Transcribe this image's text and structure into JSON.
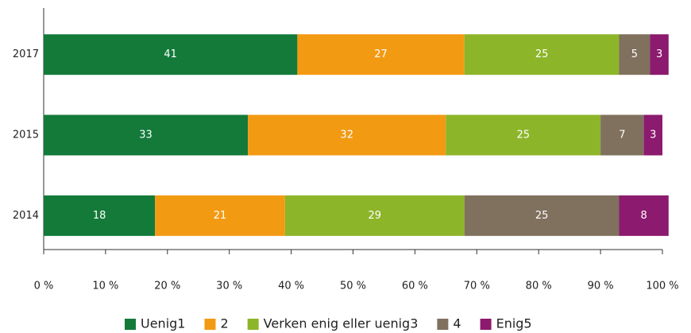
{
  "chart_data": {
    "type": "stacked-bar-horizontal",
    "categories": [
      "2017",
      "2015",
      "2014"
    ],
    "series": [
      {
        "name": "Uenig1",
        "color": "#137a3a",
        "values": [
          41,
          33,
          18
        ]
      },
      {
        "name": "2",
        "color": "#f39a13",
        "values": [
          27,
          32,
          21
        ]
      },
      {
        "name": "Verken enig eller uenig3",
        "color": "#8db52a",
        "values": [
          25,
          25,
          29
        ]
      },
      {
        "name": "4",
        "color": "#80705e",
        "values": [
          5,
          7,
          25
        ]
      },
      {
        "name": "Enig5",
        "color": "#8c1a6e",
        "values": [
          3,
          3,
          8
        ]
      }
    ],
    "xlim": [
      0,
      100
    ],
    "xticks": [
      {
        "value": 0,
        "label": "0 %"
      },
      {
        "value": 10,
        "label": "10 %"
      },
      {
        "value": 20,
        "label": "20 %"
      },
      {
        "value": 30,
        "label": "30 %"
      },
      {
        "value": 40,
        "label": "40 %"
      },
      {
        "value": 50,
        "label": "50 %"
      },
      {
        "value": 60,
        "label": "60 %"
      },
      {
        "value": 70,
        "label": "70 %"
      },
      {
        "value": 80,
        "label": "80 %"
      },
      {
        "value": 90,
        "label": "90 %"
      },
      {
        "value": 100,
        "label": "100 %"
      }
    ],
    "legend": "bottom"
  }
}
